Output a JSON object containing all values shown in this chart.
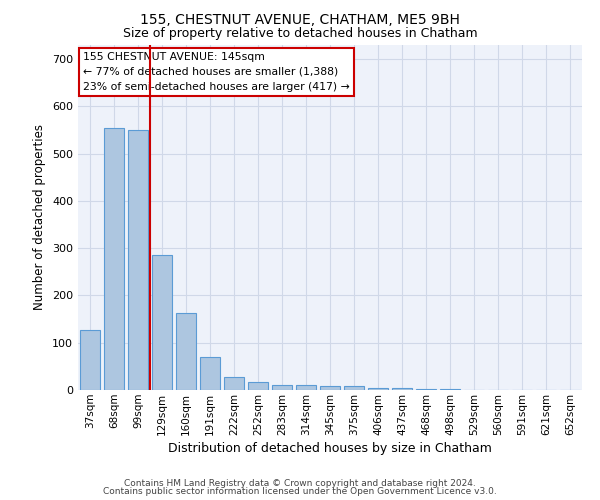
{
  "title1": "155, CHESTNUT AVENUE, CHATHAM, ME5 9BH",
  "title2": "Size of property relative to detached houses in Chatham",
  "xlabel": "Distribution of detached houses by size in Chatham",
  "ylabel": "Number of detached properties",
  "categories": [
    "37sqm",
    "68sqm",
    "99sqm",
    "129sqm",
    "160sqm",
    "191sqm",
    "222sqm",
    "252sqm",
    "283sqm",
    "314sqm",
    "345sqm",
    "375sqm",
    "406sqm",
    "437sqm",
    "468sqm",
    "498sqm",
    "529sqm",
    "560sqm",
    "591sqm",
    "621sqm",
    "652sqm"
  ],
  "values": [
    127,
    555,
    550,
    285,
    163,
    70,
    28,
    17,
    10,
    10,
    8,
    8,
    5,
    5,
    3,
    3,
    1,
    1,
    0,
    0,
    0
  ],
  "bar_color": "#adc6e0",
  "bar_edge_color": "#5b9bd5",
  "grid_color": "#d0d8e8",
  "background_color": "#eef2fa",
  "red_line_x": 2.5,
  "annotation_text": "155 CHESTNUT AVENUE: 145sqm\n← 77% of detached houses are smaller (1,388)\n23% of semi-detached houses are larger (417) →",
  "annotation_box_color": "#ffffff",
  "annotation_box_edge": "#cc0000",
  "footer1": "Contains HM Land Registry data © Crown copyright and database right 2024.",
  "footer2": "Contains public sector information licensed under the Open Government Licence v3.0.",
  "ylim": [
    0,
    730
  ],
  "yticks": [
    0,
    100,
    200,
    300,
    400,
    500,
    600,
    700
  ]
}
